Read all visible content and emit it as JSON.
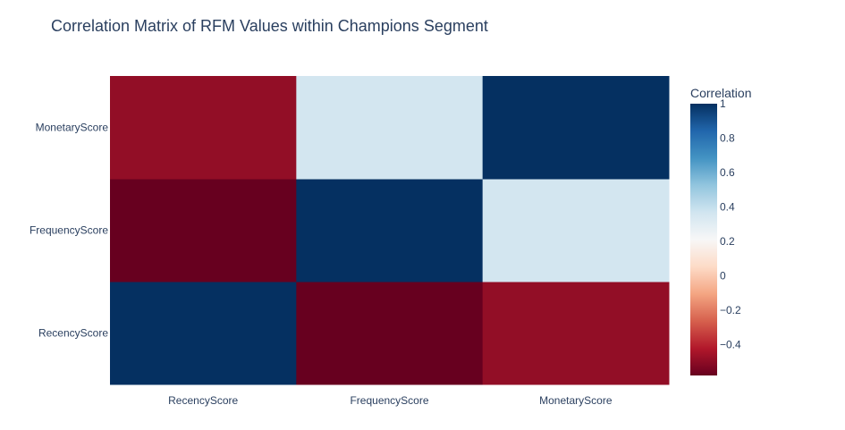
{
  "chart_data": {
    "type": "heatmap",
    "title": "Correlation Matrix of RFM Values within Champions Segment",
    "x_categories": [
      "RecencyScore",
      "FrequencyScore",
      "MonetaryScore"
    ],
    "y_categories": [
      "RecencyScore",
      "FrequencyScore",
      "MonetaryScore"
    ],
    "z": [
      [
        1.0,
        -0.58,
        -0.49
      ],
      [
        -0.58,
        1.0,
        0.36
      ],
      [
        -0.49,
        0.36,
        1.0
      ]
    ],
    "zmin": -0.58,
    "zmax": 1.0,
    "colorscale": "RdBu",
    "colorbar": {
      "title": "Correlation",
      "tick_values": [
        1,
        0.8,
        0.6,
        0.4,
        0.2,
        0,
        -0.2,
        -0.4
      ],
      "tick_labels": [
        "1",
        "0.8",
        "0.6",
        "0.4",
        "0.2",
        "0",
        "−0.2",
        "−0.4"
      ]
    }
  }
}
